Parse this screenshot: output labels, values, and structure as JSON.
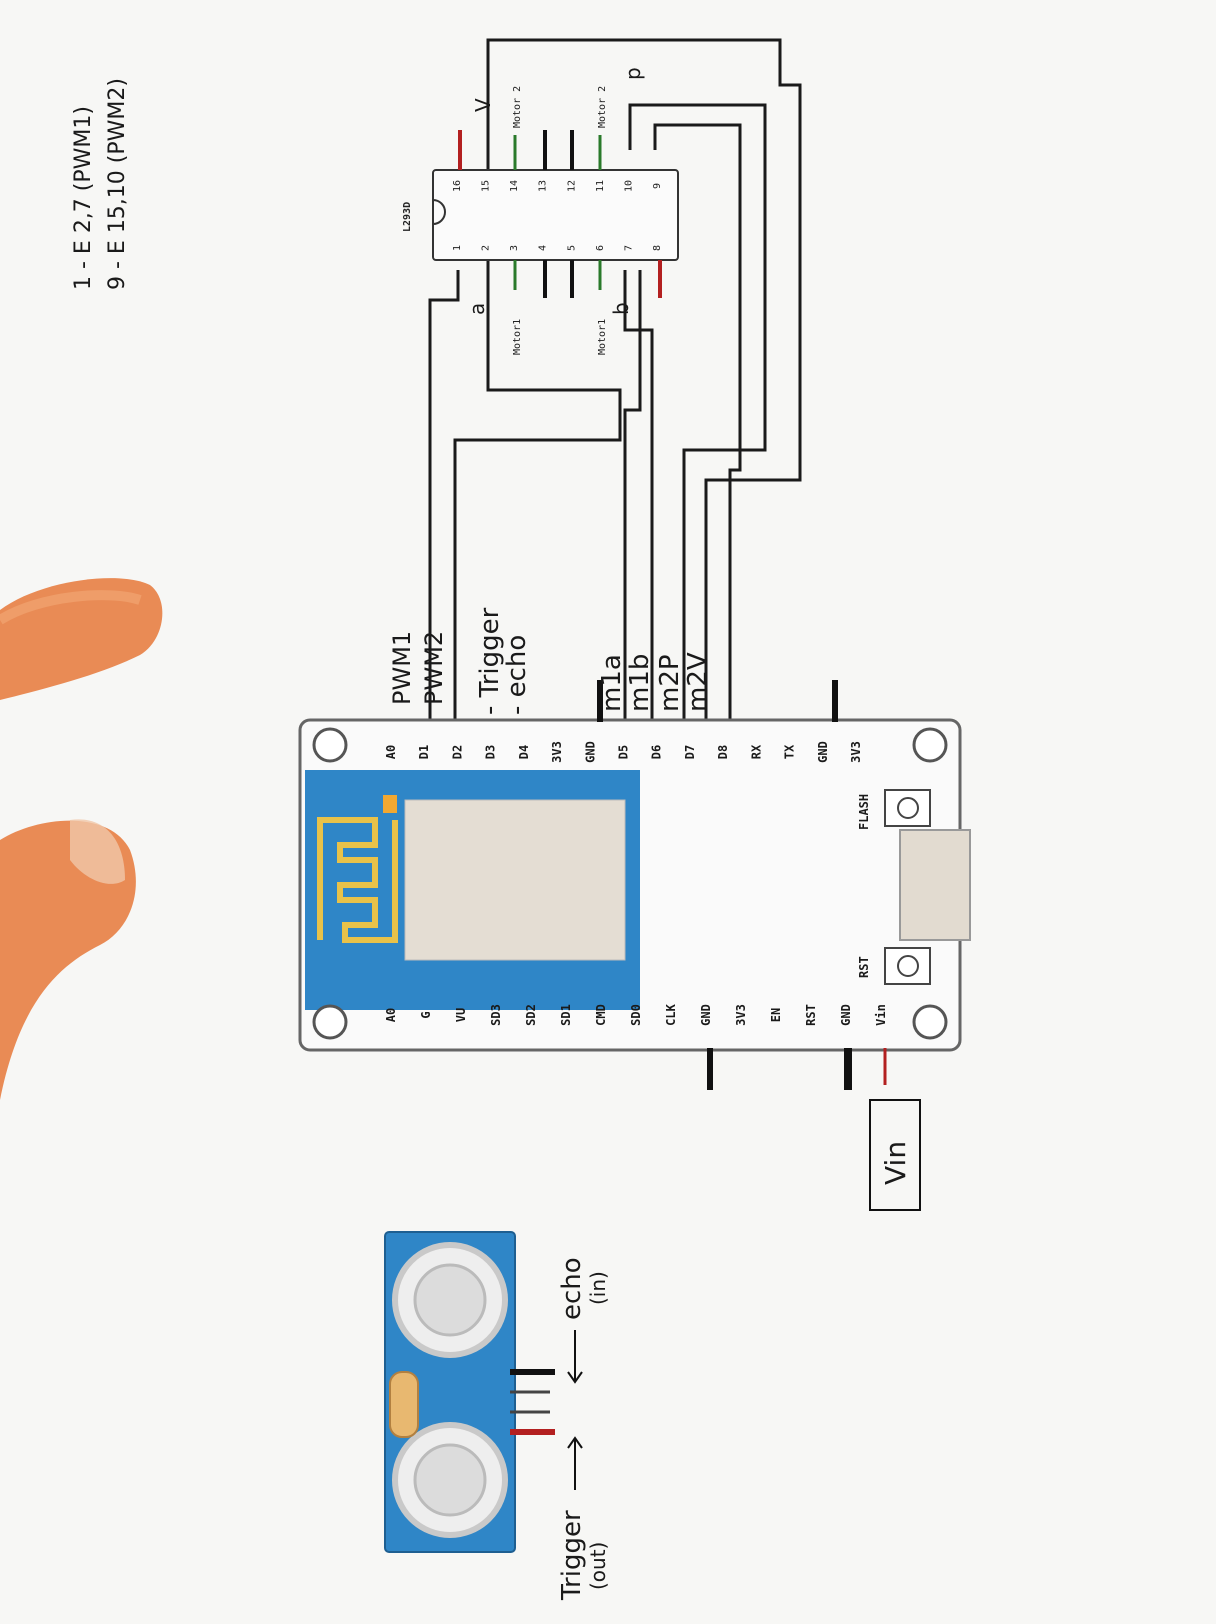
{
  "notes": {
    "line1": "1 - E 2,7   (PWM1)",
    "line2": "9 - E 15,10 (PWM2)"
  },
  "esp_labels": {
    "pwm1": "PWM1",
    "pwm2": "PWM2",
    "trigger": "- Trigger",
    "echo": "- echo",
    "m1a": "m1a",
    "m1b": "m1b",
    "m2p": "m2P",
    "m2v": "m2V"
  },
  "esp_pins_top": [
    "A0",
    "D1",
    "D2",
    "D3",
    "D4",
    "3V3",
    "GND",
    "D5",
    "D6",
    "D7",
    "D8",
    "RX",
    "TX",
    "GND",
    "3V3"
  ],
  "esp_pins_bottom": [
    "A0",
    "G",
    "VU",
    "SD3",
    "SD2",
    "SD1",
    "CMD",
    "SD0",
    "CLK",
    "GND",
    "3V3",
    "EN",
    "RST",
    "GND",
    "Vin"
  ],
  "esp_buttons": {
    "flash": "FLASH",
    "rst": "RST"
  },
  "vin_label": "Vin",
  "l293": {
    "name": "L293D",
    "pins_left": [
      "1",
      "2",
      "3",
      "4",
      "5",
      "6",
      "7",
      "8"
    ],
    "pins_right": [
      "16",
      "15",
      "14",
      "13",
      "12",
      "11",
      "10",
      "9"
    ],
    "motor1_top": "Motor1",
    "motor1_bottom": "Motor1",
    "motor2_top": "Motor 2",
    "motor2_bottom": "Motor 2",
    "label_a": "a",
    "label_b": "b",
    "label_p": "p",
    "label_v": "V"
  },
  "sensor": {
    "trigger": "Trigger",
    "trigger_sub": "(out)",
    "echo": "echo",
    "echo_sub": "(in)"
  },
  "colors": {
    "board_blue": "#2f86c7",
    "wire_red": "#b32020",
    "wire_black": "#111111",
    "wire_green": "#2a7a2a"
  }
}
